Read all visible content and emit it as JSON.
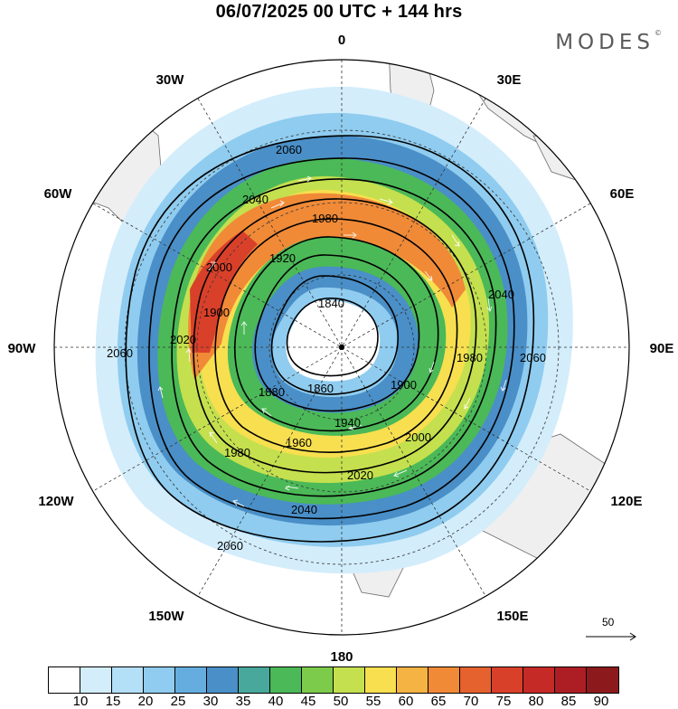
{
  "header": {
    "title": "06/07/2025  00 UTC  + 144 hrs",
    "brand": "MODES",
    "brand_mark": "©"
  },
  "map": {
    "projection": "south polar stereographic",
    "longitude_labels": [
      "0",
      "30E",
      "60E",
      "90E",
      "120E",
      "150E",
      "180",
      "150W",
      "120W",
      "90W",
      "60W",
      "30W"
    ],
    "contour_values": [
      "1840",
      "1860",
      "1880",
      "1900",
      "1920",
      "1940",
      "1960",
      "1980",
      "2000",
      "2020",
      "2040",
      "2060"
    ],
    "contour_labels": [
      "2060",
      "2040",
      "1980",
      "1920",
      "2000",
      "1900",
      "1840",
      "2020",
      "1860",
      "1880",
      "1940",
      "1960",
      "2040",
      "2060",
      "1980",
      "1900",
      "2000",
      "2020",
      "2040",
      "2060",
      "2060",
      "1980"
    ],
    "vector_scale_label": "50",
    "colors": {
      "land": "#f0f0f0",
      "coast": "#555555",
      "contour": "#000000",
      "vectors": "#ffffff"
    }
  },
  "colorbar": {
    "colors": [
      "#ffffff",
      "#d3edfb",
      "#b4e0f7",
      "#8fccef",
      "#66addf",
      "#4a8fc7",
      "#47a89b",
      "#4bb957",
      "#7dcb4b",
      "#c4e04e",
      "#f7df4f",
      "#f5b344",
      "#f08a37",
      "#e5622f",
      "#d9402a",
      "#c62a27",
      "#ad1e24",
      "#8c1a1d"
    ],
    "labels": [
      "10",
      "15",
      "20",
      "25",
      "30",
      "35",
      "40",
      "45",
      "50",
      "55",
      "60",
      "65",
      "70",
      "75",
      "80",
      "85",
      "90"
    ]
  }
}
